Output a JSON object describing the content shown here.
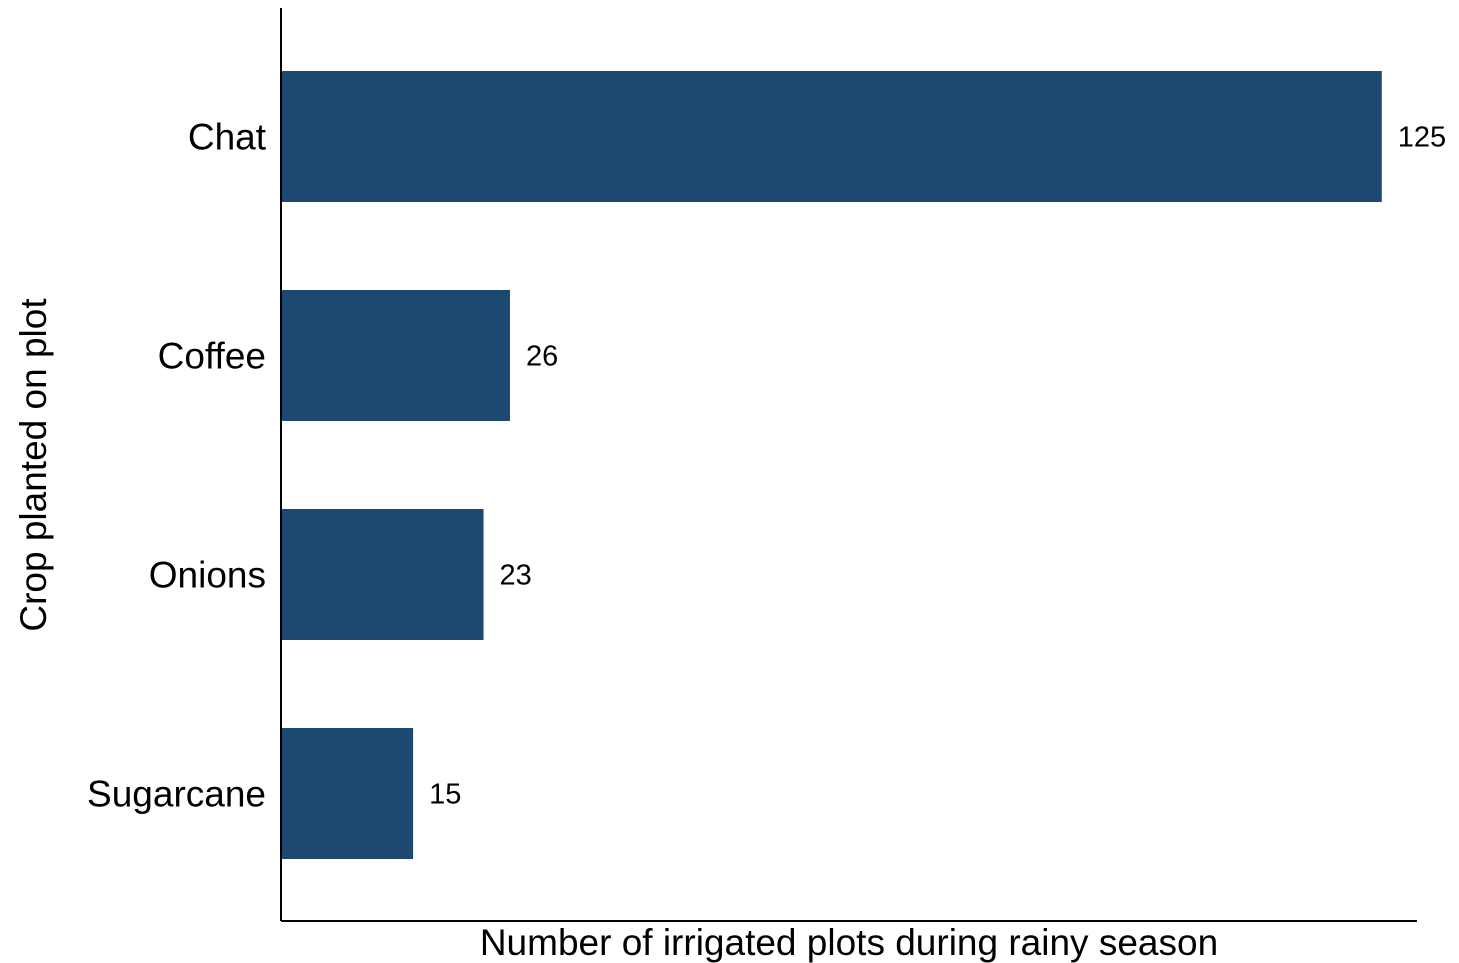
{
  "chart_data": {
    "type": "bar",
    "orientation": "horizontal",
    "title": "",
    "xlabel": "Number of irrigated plots during rainy season",
    "ylabel": "Crop planted on plot",
    "categories": [
      "Chat",
      "Coffee",
      "Onions",
      "Sugarcane"
    ],
    "values": [
      125,
      26,
      23,
      15
    ],
    "data_labels": [
      "125",
      "26",
      "23",
      "15"
    ],
    "xlim": [
      0,
      129
    ],
    "grid": false,
    "legend": "none",
    "colors": {
      "bar": "#1d4870",
      "axis": "#000000",
      "background": "#ffffff"
    }
  }
}
